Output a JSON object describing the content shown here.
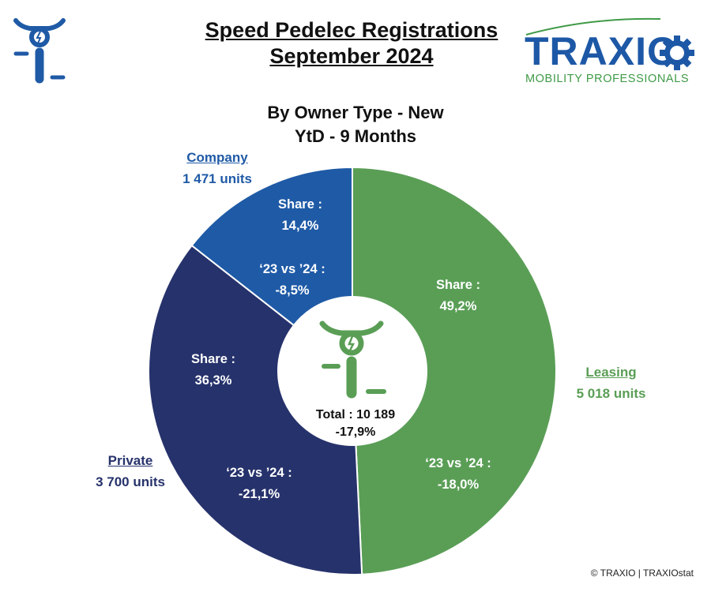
{
  "header": {
    "title_line1": "Speed Pedelec Registrations",
    "title_line2": "September 2024",
    "subtitle_line1": "By Owner Type - New",
    "subtitle_line2": "YtD - 9 Months"
  },
  "brand": {
    "name": "TRAXIO",
    "tagline": "MOBILITY PROFESSIONALS",
    "color_primary": "#1d58a6",
    "color_secondary": "#3f9a47"
  },
  "chart_data": {
    "type": "pie",
    "title": "By Owner Type - New",
    "categories": [
      "Leasing",
      "Private",
      "Company"
    ],
    "values": [
      5018,
      3700,
      1471
    ],
    "units_labels": [
      "5 018 units",
      "3 700 units",
      "1 471 units"
    ],
    "share_label": "Share :",
    "shares": [
      "49,2%",
      "36,3%",
      "14,4%"
    ],
    "change_label": "‘23 vs ’24 :",
    "changes": [
      "-18,0%",
      "-21,1%",
      "-8,5%"
    ],
    "colors": [
      "#5a9e56",
      "#26326b",
      "#1f5aa6"
    ],
    "donut": true,
    "total_label": "Total : 10 189",
    "total_change": "-17,9%",
    "legend": "none"
  },
  "footer": {
    "copyright": "© TRAXIO | TRAXIOstat"
  },
  "icons": {
    "left_logo": "speed-pedelec-icon",
    "center_logo": "speed-pedelec-icon",
    "brand_gear": "gear-icon"
  }
}
